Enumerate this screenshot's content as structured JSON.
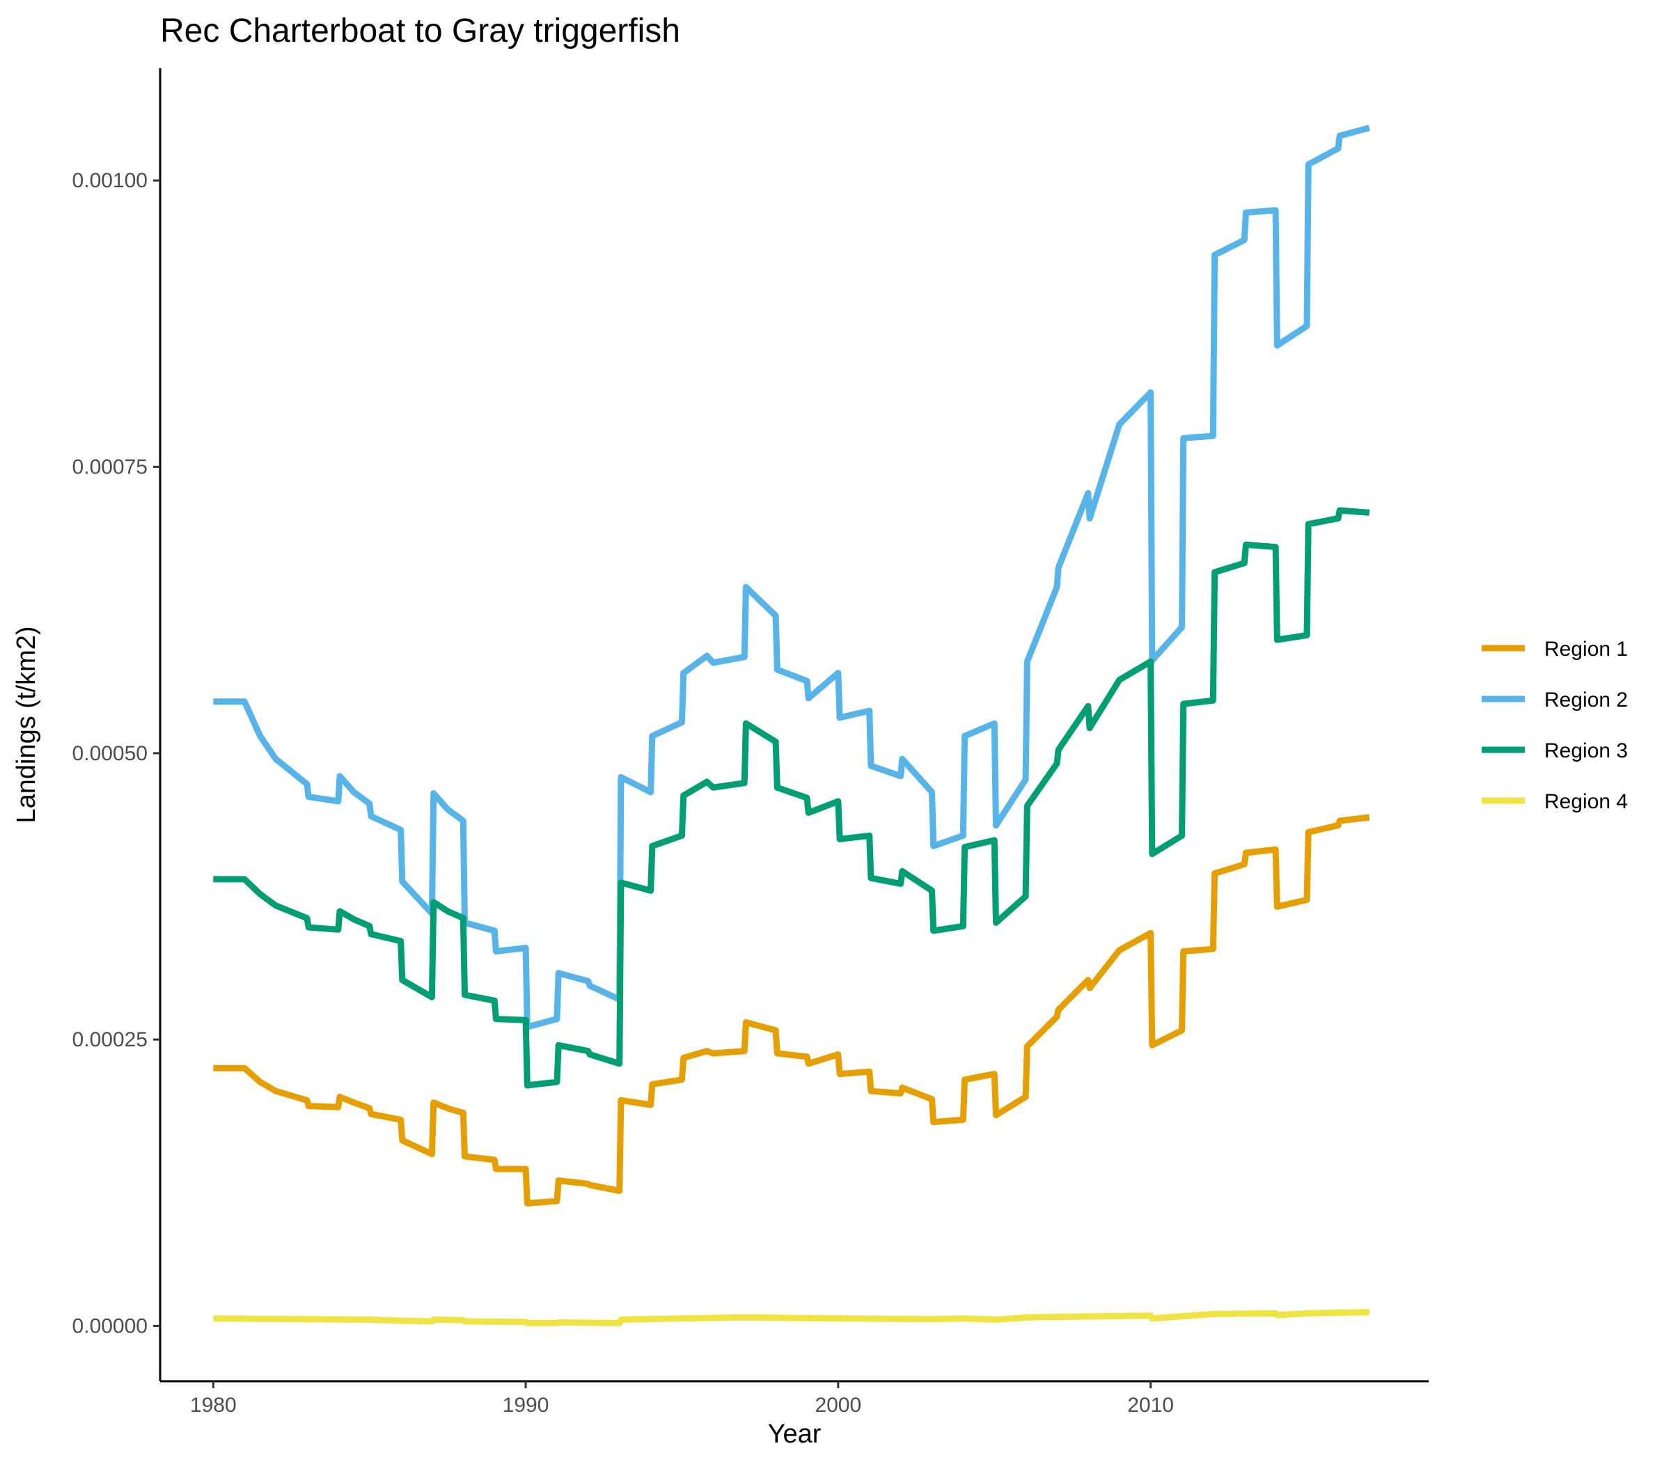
{
  "chart_data": {
    "type": "line",
    "title": "Rec Charterboat to Gray triggerfish",
    "xlabel": "Year",
    "ylabel": "Landings (t/km2)",
    "xlim": [
      1978.3,
      2018.9
    ],
    "ylim": [
      -4.83e-05,
      0.001098
    ],
    "xticks": [
      1980,
      1990,
      2000,
      2010
    ],
    "xtick_labels": [
      "1980",
      "1990",
      "2000",
      "2010"
    ],
    "yticks": [
      0,
      0.00025,
      0.0005,
      0.00075,
      0.001
    ],
    "ytick_labels": [
      "0.00000",
      "0.00025",
      "0.00050",
      "0.00075",
      "0.00100"
    ],
    "grid": false,
    "legend_position": "right",
    "series": [
      {
        "name": "Region 1",
        "color": "#E69F00",
        "points": [
          [
            1980.0,
            0.000225
          ],
          [
            1981.0,
            0.000225
          ],
          [
            1981.5,
            0.000213
          ],
          [
            1982.0,
            0.000205
          ],
          [
            1983.0,
            0.000197
          ],
          [
            1983.05,
            0.000192
          ],
          [
            1984.0,
            0.000191
          ],
          [
            1984.05,
            0.0002
          ],
          [
            1984.5,
            0.000195
          ],
          [
            1985.0,
            0.00019
          ],
          [
            1985.05,
            0.000185
          ],
          [
            1986.0,
            0.00018
          ],
          [
            1986.05,
            0.000162
          ],
          [
            1987.0,
            0.00015
          ],
          [
            1987.05,
            0.000195
          ],
          [
            1987.5,
            0.00019
          ],
          [
            1988.0,
            0.000186
          ],
          [
            1988.05,
            0.000148
          ],
          [
            1989.0,
            0.000145
          ],
          [
            1989.05,
            0.000137
          ],
          [
            1990.0,
            0.000137
          ],
          [
            1990.05,
            0.000107
          ],
          [
            1991.0,
            0.000109
          ],
          [
            1991.05,
            0.000127
          ],
          [
            1992.0,
            0.000124
          ],
          [
            1992.05,
            0.000123
          ],
          [
            1993.0,
            0.000118
          ],
          [
            1993.05,
            0.000197
          ],
          [
            1994.0,
            0.000193
          ],
          [
            1994.05,
            0.000211
          ],
          [
            1995.0,
            0.000215
          ],
          [
            1995.05,
            0.000234
          ],
          [
            1995.8,
            0.00024
          ],
          [
            1996.0,
            0.000238
          ],
          [
            1997.0,
            0.00024
          ],
          [
            1997.05,
            0.000265
          ],
          [
            1998.0,
            0.000258
          ],
          [
            1998.05,
            0.000238
          ],
          [
            1999.0,
            0.000235
          ],
          [
            1999.05,
            0.000229
          ],
          [
            2000.0,
            0.000237
          ],
          [
            2000.05,
            0.00022
          ],
          [
            2001.0,
            0.000222
          ],
          [
            2001.05,
            0.000205
          ],
          [
            2002.0,
            0.000203
          ],
          [
            2002.05,
            0.000208
          ],
          [
            2003.0,
            0.000198
          ],
          [
            2003.05,
            0.000178
          ],
          [
            2004.0,
            0.00018
          ],
          [
            2004.05,
            0.000215
          ],
          [
            2005.0,
            0.00022
          ],
          [
            2005.05,
            0.000184
          ],
          [
            2006.0,
            0.0002
          ],
          [
            2006.05,
            0.000244
          ],
          [
            2007.0,
            0.00027
          ],
          [
            2007.05,
            0.000276
          ],
          [
            2008.0,
            0.000302
          ],
          [
            2008.05,
            0.000295
          ],
          [
            2009.0,
            0.000328
          ],
          [
            2010.0,
            0.000343
          ],
          [
            2010.05,
            0.000245
          ],
          [
            2011.0,
            0.000258
          ],
          [
            2011.05,
            0.000327
          ],
          [
            2012.0,
            0.000329
          ],
          [
            2012.05,
            0.000395
          ],
          [
            2013.0,
            0.000403
          ],
          [
            2013.05,
            0.000413
          ],
          [
            2014.0,
            0.000416
          ],
          [
            2014.05,
            0.000366
          ],
          [
            2015.0,
            0.000372
          ],
          [
            2015.05,
            0.000431
          ],
          [
            2016.0,
            0.000437
          ],
          [
            2016.05,
            0.000441
          ],
          [
            2017.0,
            0.000444
          ]
        ]
      },
      {
        "name": "Region 2",
        "color": "#56B4E9",
        "points": [
          [
            1980.0,
            0.000545
          ],
          [
            1981.0,
            0.000545
          ],
          [
            1981.5,
            0.000515
          ],
          [
            1982.0,
            0.000495
          ],
          [
            1983.0,
            0.000473
          ],
          [
            1983.05,
            0.000462
          ],
          [
            1984.0,
            0.000458
          ],
          [
            1984.05,
            0.00048
          ],
          [
            1984.5,
            0.000466
          ],
          [
            1985.0,
            0.000456
          ],
          [
            1985.05,
            0.000445
          ],
          [
            1986.0,
            0.000433
          ],
          [
            1986.05,
            0.000388
          ],
          [
            1987.0,
            0.00036
          ],
          [
            1987.05,
            0.000465
          ],
          [
            1987.5,
            0.000451
          ],
          [
            1988.0,
            0.000441
          ],
          [
            1988.05,
            0.000352
          ],
          [
            1989.0,
            0.000345
          ],
          [
            1989.05,
            0.000327
          ],
          [
            1990.0,
            0.00033
          ],
          [
            1990.05,
            0.000261
          ],
          [
            1991.0,
            0.000268
          ],
          [
            1991.05,
            0.000308
          ],
          [
            1992.0,
            0.000301
          ],
          [
            1992.05,
            0.000297
          ],
          [
            1993.0,
            0.000285
          ],
          [
            1993.05,
            0.000479
          ],
          [
            1994.0,
            0.000466
          ],
          [
            1994.05,
            0.000515
          ],
          [
            1995.0,
            0.000527
          ],
          [
            1995.05,
            0.00057
          ],
          [
            1995.8,
            0.000585
          ],
          [
            1996.0,
            0.000579
          ],
          [
            1997.0,
            0.000584
          ],
          [
            1997.05,
            0.000645
          ],
          [
            1998.0,
            0.00062
          ],
          [
            1998.05,
            0.000573
          ],
          [
            1999.0,
            0.000563
          ],
          [
            1999.05,
            0.000548
          ],
          [
            2000.0,
            0.00057
          ],
          [
            2000.05,
            0.000531
          ],
          [
            2001.0,
            0.000537
          ],
          [
            2001.05,
            0.000489
          ],
          [
            2002.0,
            0.00048
          ],
          [
            2002.05,
            0.000495
          ],
          [
            2003.0,
            0.000466
          ],
          [
            2003.05,
            0.000419
          ],
          [
            2004.0,
            0.000428
          ],
          [
            2004.05,
            0.000515
          ],
          [
            2005.0,
            0.000526
          ],
          [
            2005.05,
            0.000437
          ],
          [
            2006.0,
            0.000477
          ],
          [
            2006.05,
            0.00058
          ],
          [
            2007.0,
            0.000645
          ],
          [
            2007.05,
            0.000662
          ],
          [
            2008.0,
            0.000727
          ],
          [
            2008.05,
            0.000705
          ],
          [
            2009.0,
            0.000787
          ],
          [
            2010.0,
            0.000815
          ],
          [
            2010.05,
            0.000581
          ],
          [
            2011.0,
            0.00061
          ],
          [
            2011.05,
            0.000775
          ],
          [
            2012.0,
            0.000777
          ],
          [
            2012.05,
            0.000935
          ],
          [
            2013.0,
            0.000948
          ],
          [
            2013.05,
            0.000972
          ],
          [
            2014.0,
            0.000974
          ],
          [
            2014.05,
            0.000856
          ],
          [
            2015.0,
            0.000873
          ],
          [
            2015.05,
            0.001014
          ],
          [
            2016.0,
            0.001028
          ],
          [
            2016.05,
            0.001039
          ],
          [
            2017.0,
            0.001046
          ]
        ]
      },
      {
        "name": "Region 3",
        "color": "#009E73",
        "points": [
          [
            1980.0,
            0.00039
          ],
          [
            1981.0,
            0.00039
          ],
          [
            1981.5,
            0.000377
          ],
          [
            1982.0,
            0.000367
          ],
          [
            1983.0,
            0.000356
          ],
          [
            1983.05,
            0.000348
          ],
          [
            1984.0,
            0.000346
          ],
          [
            1984.05,
            0.000362
          ],
          [
            1984.5,
            0.000355
          ],
          [
            1985.0,
            0.000349
          ],
          [
            1985.05,
            0.000342
          ],
          [
            1986.0,
            0.000336
          ],
          [
            1986.05,
            0.000302
          ],
          [
            1987.0,
            0.000287
          ],
          [
            1987.05,
            0.00037
          ],
          [
            1987.5,
            0.000362
          ],
          [
            1988.0,
            0.000356
          ],
          [
            1988.05,
            0.000289
          ],
          [
            1989.0,
            0.000284
          ],
          [
            1989.05,
            0.000268
          ],
          [
            1990.0,
            0.000267
          ],
          [
            1990.05,
            0.00021
          ],
          [
            1991.0,
            0.000213
          ],
          [
            1991.05,
            0.000245
          ],
          [
            1992.0,
            0.00024
          ],
          [
            1992.05,
            0.000237
          ],
          [
            1993.0,
            0.000229
          ],
          [
            1993.05,
            0.000387
          ],
          [
            1994.0,
            0.00038
          ],
          [
            1994.05,
            0.000419
          ],
          [
            1995.0,
            0.000428
          ],
          [
            1995.05,
            0.000463
          ],
          [
            1995.8,
            0.000475
          ],
          [
            1996.0,
            0.00047
          ],
          [
            1997.0,
            0.000474
          ],
          [
            1997.05,
            0.000526
          ],
          [
            1998.0,
            0.00051
          ],
          [
            1998.05,
            0.00047
          ],
          [
            1999.0,
            0.000461
          ],
          [
            1999.05,
            0.000448
          ],
          [
            2000.0,
            0.000458
          ],
          [
            2000.05,
            0.000425
          ],
          [
            2001.0,
            0.000428
          ],
          [
            2001.05,
            0.000391
          ],
          [
            2002.0,
            0.000386
          ],
          [
            2002.05,
            0.000397
          ],
          [
            2003.0,
            0.00038
          ],
          [
            2003.05,
            0.000345
          ],
          [
            2004.0,
            0.000349
          ],
          [
            2004.05,
            0.000418
          ],
          [
            2005.0,
            0.000424
          ],
          [
            2005.05,
            0.000352
          ],
          [
            2006.0,
            0.000375
          ],
          [
            2006.05,
            0.000454
          ],
          [
            2007.0,
            0.000491
          ],
          [
            2007.05,
            0.000503
          ],
          [
            2008.0,
            0.000541
          ],
          [
            2008.05,
            0.000522
          ],
          [
            2009.0,
            0.000564
          ],
          [
            2010.0,
            0.00058
          ],
          [
            2010.05,
            0.000412
          ],
          [
            2011.0,
            0.000428
          ],
          [
            2011.05,
            0.000543
          ],
          [
            2012.0,
            0.000546
          ],
          [
            2012.05,
            0.000658
          ],
          [
            2013.0,
            0.000666
          ],
          [
            2013.05,
            0.000682
          ],
          [
            2014.0,
            0.00068
          ],
          [
            2014.05,
            0.000599
          ],
          [
            2015.0,
            0.000603
          ],
          [
            2015.05,
            0.0007
          ],
          [
            2016.0,
            0.000705
          ],
          [
            2016.05,
            0.000712
          ],
          [
            2017.0,
            0.00071
          ]
        ]
      },
      {
        "name": "Region 4",
        "color": "#F0E442",
        "points": [
          [
            1980.0,
            6.5e-06
          ],
          [
            1985.0,
            5.5e-06
          ],
          [
            1986.05,
            4.5e-06
          ],
          [
            1987.0,
            4e-06
          ],
          [
            1987.05,
            5.5e-06
          ],
          [
            1988.0,
            5e-06
          ],
          [
            1988.05,
            4e-06
          ],
          [
            1990.0,
            3.5e-06
          ],
          [
            1990.05,
            2.5e-06
          ],
          [
            1991.0,
            2.5e-06
          ],
          [
            1991.05,
            3e-06
          ],
          [
            1993.0,
            2.5e-06
          ],
          [
            1993.05,
            5.5e-06
          ],
          [
            1995.0,
            6.5e-06
          ],
          [
            1997.05,
            7.5e-06
          ],
          [
            2000.0,
            6.5e-06
          ],
          [
            2003.0,
            6e-06
          ],
          [
            2004.05,
            6.5e-06
          ],
          [
            2005.05,
            5.5e-06
          ],
          [
            2006.05,
            7.5e-06
          ],
          [
            2010.0,
            9e-06
          ],
          [
            2010.05,
            6.5e-06
          ],
          [
            2011.05,
            8.5e-06
          ],
          [
            2012.05,
            1.05e-05
          ],
          [
            2014.0,
            1.1e-05
          ],
          [
            2014.05,
            9.5e-06
          ],
          [
            2015.05,
            1.1e-05
          ],
          [
            2017.0,
            1.2e-05
          ]
        ]
      }
    ]
  }
}
